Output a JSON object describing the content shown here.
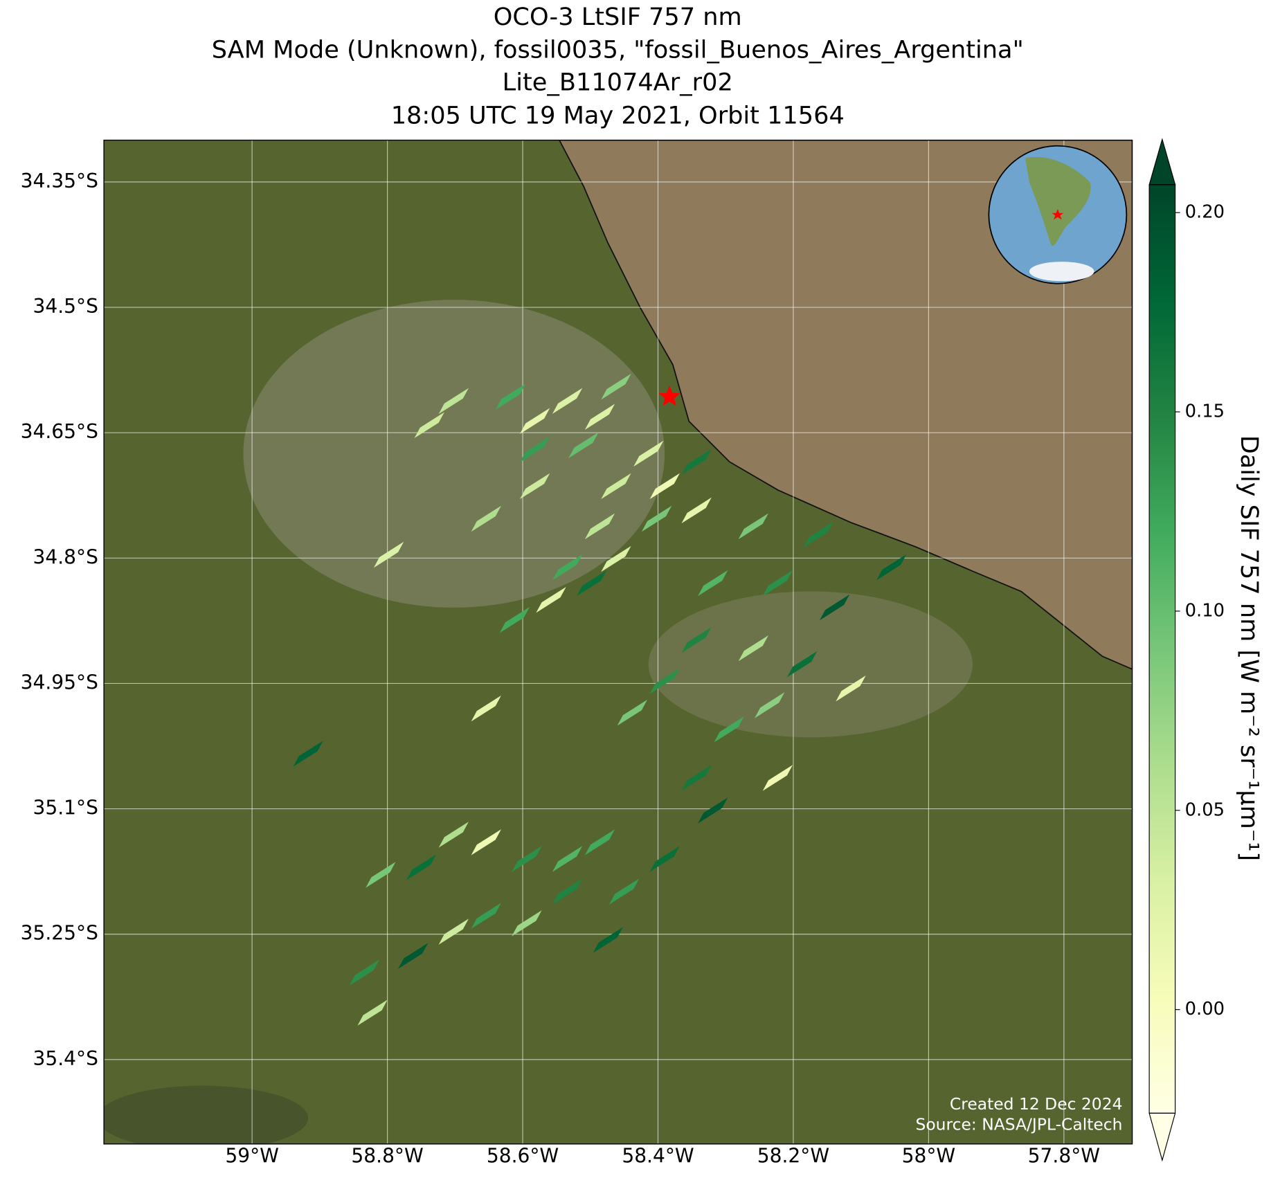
{
  "chart_data": {
    "type": "map",
    "title_lines": [
      "OCO-3 LtSIF 757 nm",
      "SAM Mode (Unknown), fossil0035, \"fossil_Buenos_Aires_Argentina\"",
      "Lite_B11074Ar_r02",
      "18:05 UTC 19 May 2021, Orbit 11564"
    ],
    "xlim": [
      -59.219,
      -57.699
    ],
    "ylim": [
      -35.501,
      -34.3
    ],
    "xticks": [
      {
        "value": -59,
        "label": "59°W"
      },
      {
        "value": -58.8,
        "label": "58.8°W"
      },
      {
        "value": -58.6,
        "label": "58.6°W"
      },
      {
        "value": -58.4,
        "label": "58.4°W"
      },
      {
        "value": -58.2,
        "label": "58.2°W"
      },
      {
        "value": -58,
        "label": "58°W"
      },
      {
        "value": -57.8,
        "label": "57.8°W"
      }
    ],
    "yticks": [
      {
        "value": -34.35,
        "label": "34.35°S"
      },
      {
        "value": -34.5,
        "label": "34.5°S"
      },
      {
        "value": -34.65,
        "label": "34.65°S"
      },
      {
        "value": -34.8,
        "label": "34.8°S"
      },
      {
        "value": -34.95,
        "label": "34.95°S"
      },
      {
        "value": -35.1,
        "label": "35.1°S"
      },
      {
        "value": -35.25,
        "label": "35.25°S"
      },
      {
        "value": -35.4,
        "label": "35.4°S"
      }
    ],
    "grid": true,
    "colorbar": {
      "label": "Daily SIF 757 nm [W m⁻² sr⁻¹μm⁻¹]",
      "clim": [
        -0.026,
        0.207
      ],
      "extend": "both",
      "ticks": [
        {
          "value": 0,
          "label": "0.00"
        },
        {
          "value": 0.05,
          "label": "0.05"
        },
        {
          "value": 0.1,
          "label": "0.10"
        },
        {
          "value": 0.15,
          "label": "0.15"
        },
        {
          "value": 0.2,
          "label": "0.20"
        }
      ],
      "colormap": [
        "#ffffe5",
        "#f7fcb9",
        "#d9f0a3",
        "#addd8e",
        "#78c679",
        "#41ab5d",
        "#238443",
        "#006837",
        "#004529"
      ]
    },
    "site": {
      "lon": -58.383,
      "lat": -34.607,
      "color": "#ff0000"
    },
    "footprints": {
      "lon": [
        -58.702,
        -58.618,
        -58.534,
        -58.462,
        -58.738,
        -58.582,
        -58.486,
        -58.582,
        -58.51,
        -58.414,
        -58.462,
        -58.39,
        -58.343,
        -58.486,
        -58.402,
        -58.343,
        -58.534,
        -58.462,
        -58.654,
        -58.798,
        -58.558,
        -58.498,
        -58.612,
        -58.259,
        -58.163,
        -58.055,
        -58.319,
        -58.223,
        -58.139,
        -58.343,
        -58.259,
        -58.187,
        -58.115,
        -58.39,
        -58.438,
        -58.235,
        -58.654,
        -58.917,
        -58.295,
        -58.343,
        -58.223,
        -58.319,
        -58.39,
        -58.45,
        -58.474,
        -58.534,
        -58.594,
        -58.654,
        -58.702,
        -58.75,
        -58.81,
        -58.654,
        -58.702,
        -58.762,
        -58.834,
        -58.822,
        -58.534,
        -58.486,
        -58.594,
        -58.582
      ],
      "lat": [
        -34.612,
        -34.607,
        -34.612,
        -34.595,
        -34.641,
        -34.636,
        -34.631,
        -34.67,
        -34.665,
        -34.675,
        -34.714,
        -34.714,
        -34.685,
        -34.762,
        -34.753,
        -34.743,
        -34.811,
        -34.801,
        -34.753,
        -34.796,
        -34.85,
        -34.83,
        -34.874,
        -34.762,
        -34.772,
        -34.811,
        -34.83,
        -34.83,
        -34.859,
        -34.898,
        -34.908,
        -34.927,
        -34.956,
        -34.947,
        -34.985,
        -34.976,
        -34.98,
        -35.034,
        -35.005,
        -35.063,
        -35.063,
        -35.102,
        -35.16,
        -35.199,
        -35.257,
        -35.16,
        -35.16,
        -35.14,
        -35.131,
        -35.17,
        -35.179,
        -35.228,
        -35.247,
        -35.276,
        -35.296,
        -35.344,
        -35.199,
        -35.14,
        -35.237,
        -34.714
      ],
      "values": [
        0.05,
        0.12,
        0.03,
        0.08,
        0.04,
        0.02,
        0.03,
        0.13,
        0.1,
        0.03,
        0.04,
        0.01,
        0.16,
        0.05,
        0.09,
        0.02,
        0.12,
        0.03,
        0.06,
        0.03,
        0.02,
        0.17,
        0.12,
        0.09,
        0.15,
        0.18,
        0.11,
        0.14,
        0.19,
        0.15,
        0.06,
        0.17,
        0.02,
        0.14,
        0.09,
        0.08,
        0.02,
        0.18,
        0.12,
        0.16,
        0.01,
        0.19,
        0.17,
        0.13,
        0.18,
        0.11,
        0.14,
        0.01,
        0.06,
        0.17,
        0.09,
        0.13,
        0.04,
        0.19,
        0.14,
        0.05,
        0.15,
        0.12,
        0.07,
        0.04
      ]
    },
    "footer": [
      "Created 12 Dec 2024",
      "Source: NASA/JPL-Caltech"
    ]
  }
}
